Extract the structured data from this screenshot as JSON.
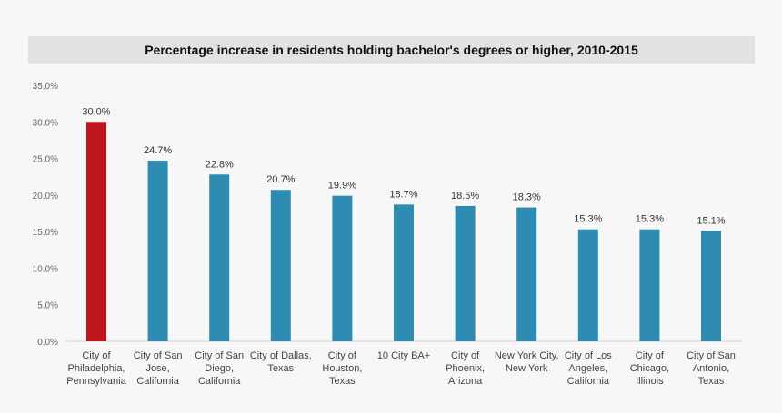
{
  "chart_data": {
    "type": "bar",
    "title": "Percentage increase in residents holding bachelor's degrees or higher, 2010-2015",
    "xlabel": "",
    "ylabel": "",
    "ylim": [
      0,
      35
    ],
    "yticks": [
      "0.0%",
      "5.0%",
      "10.0%",
      "15.0%",
      "20.0%",
      "25.0%",
      "30.0%",
      "35.0%"
    ],
    "grid": false,
    "categories": [
      [
        "City of",
        "Philadelphia,",
        "Pennsylvania"
      ],
      [
        "City of San",
        "Jose,",
        "California"
      ],
      [
        "City of San",
        "Diego,",
        "California"
      ],
      [
        "City of Dallas,",
        "Texas"
      ],
      [
        "City of",
        "Houston,",
        "Texas"
      ],
      [
        "10 City BA+"
      ],
      [
        "City of",
        "Phoenix,",
        "Arizona"
      ],
      [
        "New York City,",
        "New York"
      ],
      [
        "City of Los",
        "Angeles,",
        "California"
      ],
      [
        "City of",
        "Chicago,",
        "Illinois"
      ],
      [
        "City of San",
        "Antonio,",
        "Texas"
      ]
    ],
    "values": [
      30.0,
      24.7,
      22.8,
      20.7,
      19.9,
      18.7,
      18.5,
      18.3,
      15.3,
      15.3,
      15.1
    ],
    "data_labels": [
      "30.0%",
      "24.7%",
      "22.8%",
      "20.7%",
      "19.9%",
      "18.7%",
      "18.5%",
      "18.3%",
      "15.3%",
      "15.3%",
      "15.1%"
    ],
    "colors": {
      "highlight": "#be141c",
      "default": "#2e8cb2"
    },
    "highlight_index": 0
  }
}
